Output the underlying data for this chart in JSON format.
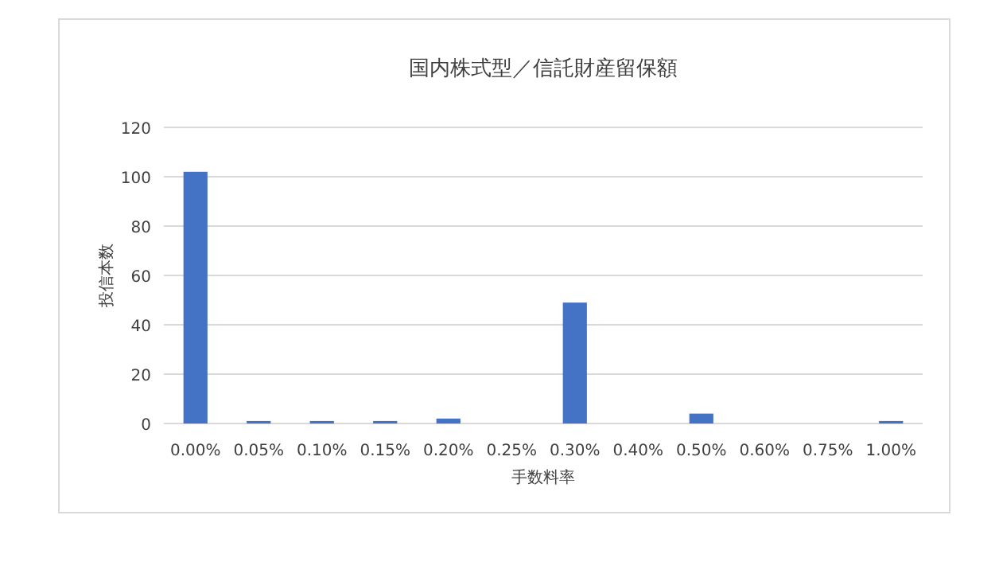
{
  "chart_data": {
    "type": "bar",
    "title": "国内株式型／信託財産留保額",
    "xlabel": "手数料率",
    "ylabel": "投信本数",
    "categories": [
      "0.00%",
      "0.05%",
      "0.10%",
      "0.15%",
      "0.20%",
      "0.25%",
      "0.30%",
      "0.40%",
      "0.50%",
      "0.60%",
      "0.75%",
      "1.00%"
    ],
    "values": [
      102,
      1,
      1,
      1,
      2,
      0,
      49,
      0,
      4,
      0,
      0,
      1
    ],
    "color": "#4472c4",
    "ylim": [
      0,
      120
    ],
    "yticks": [
      0,
      20,
      40,
      60,
      80,
      100,
      120
    ],
    "grid": "y"
  }
}
